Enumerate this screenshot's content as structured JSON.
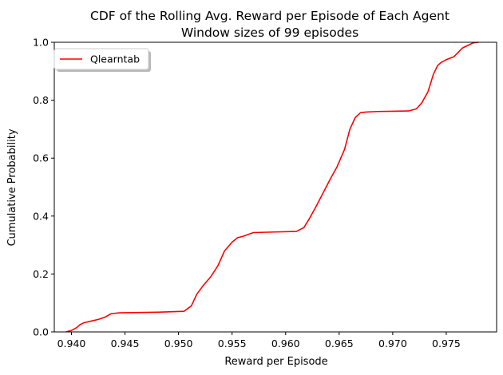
{
  "chart_data": {
    "type": "line",
    "title": "CDF of the Rolling Avg. Reward per Episode of Each Agent",
    "subtitle": "Window sizes of 99 episodes",
    "xlabel": "Reward per Episode",
    "ylabel": "Cumulative Probability",
    "xlim": [
      0.9384,
      0.9797
    ],
    "ylim": [
      0.0,
      1.0
    ],
    "xticks": [
      0.94,
      0.945,
      0.95,
      0.955,
      0.96,
      0.965,
      0.97,
      0.975
    ],
    "xtick_labels": [
      "0.940",
      "0.945",
      "0.950",
      "0.955",
      "0.960",
      "0.965",
      "0.970",
      "0.975"
    ],
    "yticks": [
      0.0,
      0.2,
      0.4,
      0.6,
      0.8,
      1.0
    ],
    "ytick_labels": [
      "0.0",
      "0.2",
      "0.4",
      "0.6",
      "0.8",
      "1.0"
    ],
    "grid": false,
    "legend_position": "top-left",
    "series": [
      {
        "name": "Qlearntab",
        "color": "#ff0000",
        "x": [
          0.9395,
          0.94,
          0.9405,
          0.9408,
          0.9412,
          0.9418,
          0.9425,
          0.9432,
          0.9437,
          0.9445,
          0.948,
          0.9505,
          0.9512,
          0.9517,
          0.9523,
          0.953,
          0.9537,
          0.9543,
          0.955,
          0.9555,
          0.956,
          0.957,
          0.959,
          0.961,
          0.9617,
          0.9622,
          0.9628,
          0.9635,
          0.9642,
          0.9648,
          0.9655,
          0.966,
          0.9665,
          0.967,
          0.9675,
          0.9685,
          0.97,
          0.9715,
          0.9722,
          0.9727,
          0.9733,
          0.9738,
          0.9742,
          0.9745,
          0.975,
          0.9757,
          0.9765,
          0.9775,
          0.978
        ],
        "y": [
          0.0,
          0.005,
          0.015,
          0.025,
          0.032,
          0.037,
          0.043,
          0.052,
          0.063,
          0.066,
          0.068,
          0.071,
          0.09,
          0.13,
          0.16,
          0.19,
          0.23,
          0.28,
          0.31,
          0.325,
          0.33,
          0.343,
          0.345,
          0.347,
          0.36,
          0.39,
          0.43,
          0.48,
          0.53,
          0.57,
          0.63,
          0.7,
          0.74,
          0.757,
          0.759,
          0.761,
          0.762,
          0.763,
          0.77,
          0.79,
          0.83,
          0.89,
          0.92,
          0.93,
          0.94,
          0.95,
          0.98,
          0.998,
          1.0
        ]
      }
    ]
  }
}
